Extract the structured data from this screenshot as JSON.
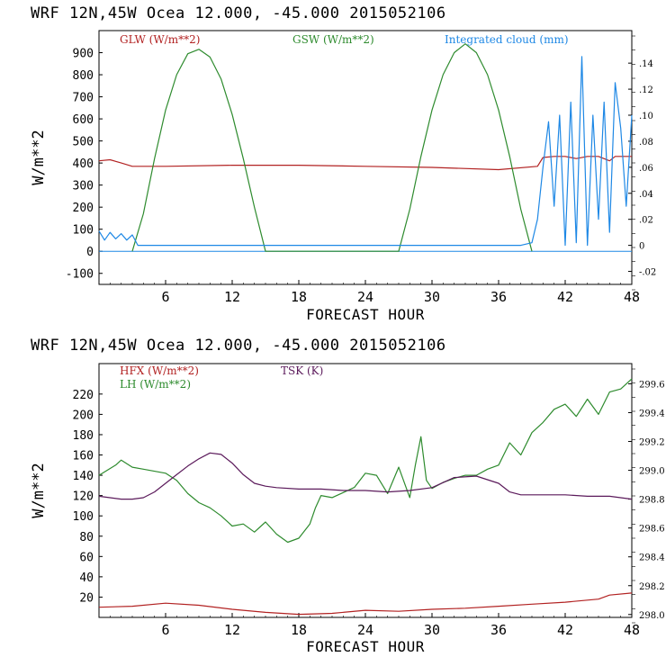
{
  "colors": {
    "axis": "#000000",
    "glw": "#b22222",
    "gsw": "#2e8b2e",
    "cloud": "#1e88e5",
    "hfx": "#b22222",
    "lh": "#2e8b2e",
    "tsk": "#5b1a5b"
  },
  "chart_data": [
    {
      "type": "line",
      "title": "WRF   12N,45W Ocea  12.000, -45.000  2015052106",
      "xlabel": "FORECAST HOUR",
      "ylabel": "W/m**2",
      "xlim": [
        0,
        48
      ],
      "xticks": [
        "6",
        "12",
        "18",
        "24",
        "30",
        "36",
        "42",
        "48"
      ],
      "ylim": [
        -150,
        1000
      ],
      "yticks": [
        "-100",
        "0",
        "100",
        "200",
        "300",
        "400",
        "500",
        "600",
        "700",
        "800",
        "900"
      ],
      "y2lim": [
        -0.03,
        0.165
      ],
      "y2ticks": [
        "-.02",
        "0",
        ".02",
        ".04",
        ".06",
        ".08",
        ".10",
        ".12",
        ".14"
      ],
      "y2label": "Integrated cloud (mm)",
      "series": [
        {
          "name": "GLW (W/m**2)",
          "axis": "left",
          "x": [
            0,
            1,
            2,
            3,
            6,
            12,
            18,
            24,
            30,
            36,
            39.5,
            40,
            41,
            42,
            43,
            44,
            45,
            46,
            46.5,
            47,
            48
          ],
          "y": [
            410,
            415,
            400,
            385,
            385,
            390,
            390,
            385,
            380,
            370,
            385,
            425,
            430,
            430,
            420,
            430,
            430,
            410,
            430,
            430,
            430
          ]
        },
        {
          "name": "GSW (W/m**2)",
          "axis": "left",
          "x": [
            3,
            4,
            5,
            6,
            7,
            8,
            9,
            10,
            11,
            12,
            13,
            14,
            15,
            27,
            28,
            29,
            30,
            31,
            32,
            33,
            34,
            35,
            36,
            37,
            38,
            39
          ],
          "y": [
            0,
            170,
            420,
            640,
            800,
            895,
            915,
            880,
            780,
            620,
            420,
            200,
            0,
            0,
            190,
            430,
            640,
            800,
            900,
            940,
            900,
            800,
            640,
            430,
            190,
            0
          ]
        },
        {
          "name": "Integrated cloud (mm)",
          "axis": "right",
          "x": [
            0,
            0.5,
            1,
            1.5,
            2,
            2.5,
            3,
            3.5,
            4,
            8,
            16,
            24,
            32,
            38,
            39,
            39.5,
            40,
            40.5,
            41,
            41.5,
            42,
            42.5,
            43,
            43.5,
            44,
            44.5,
            45,
            45.5,
            46,
            46.5,
            47,
            47.5,
            48
          ],
          "y": [
            0.011,
            0.004,
            0.01,
            0.005,
            0.009,
            0.004,
            0.008,
            0,
            0,
            0,
            0,
            0,
            0,
            0,
            0.002,
            0.02,
            0.06,
            0.095,
            0.03,
            0.1,
            0,
            0.11,
            0.002,
            0.145,
            0,
            0.1,
            0.02,
            0.11,
            0.01,
            0.125,
            0.09,
            0.03,
            0.1
          ]
        }
      ]
    },
    {
      "type": "line",
      "title": "WRF   12N,45W Ocea  12.000, -45.000  2015052106",
      "xlabel": "FORECAST HOUR",
      "ylabel": "W/m**2",
      "xlim": [
        0,
        48
      ],
      "xticks": [
        "6",
        "12",
        "18",
        "24",
        "30",
        "36",
        "42",
        "48"
      ],
      "ylim": [
        0,
        250
      ],
      "yticks": [
        "20",
        "40",
        "60",
        "80",
        "100",
        "120",
        "140",
        "160",
        "180",
        "200",
        "220"
      ],
      "y2lim": [
        297.98,
        299.74
      ],
      "y2ticks": [
        "298.0",
        "298.2",
        "298.4",
        "298.6",
        "298.8",
        "299.0",
        "299.2",
        "299.4",
        "299.6"
      ],
      "y2label": "TSK (K)",
      "series": [
        {
          "name": "HFX (W/m**2)",
          "axis": "left",
          "x": [
            0,
            3,
            6,
            9,
            12,
            15,
            18,
            21,
            24,
            27,
            30,
            33,
            36,
            39,
            42,
            45,
            46,
            48
          ],
          "y": [
            10,
            11,
            14,
            12,
            8,
            5,
            3,
            4,
            7,
            6,
            8,
            9,
            11,
            13,
            15,
            18,
            22,
            24
          ]
        },
        {
          "name": "LH  (W/m**2)",
          "axis": "left",
          "x": [
            0,
            1.5,
            2,
            3,
            4,
            6,
            7,
            8,
            9,
            10,
            11,
            12,
            13,
            14,
            15,
            16,
            17,
            18,
            19,
            19.5,
            20,
            21,
            22,
            23,
            24,
            25,
            26,
            27,
            28,
            28.5,
            29,
            29.5,
            30,
            31,
            32,
            33,
            34,
            35,
            36,
            37,
            38,
            39,
            40,
            41,
            42,
            43,
            44,
            45,
            46,
            47,
            48
          ],
          "y": [
            140,
            150,
            155,
            148,
            146,
            142,
            135,
            122,
            113,
            108,
            100,
            90,
            92,
            84,
            94,
            82,
            74,
            78,
            92,
            108,
            120,
            118,
            123,
            128,
            142,
            140,
            122,
            148,
            118,
            150,
            178,
            135,
            127,
            133,
            137,
            140,
            140,
            146,
            150,
            172,
            160,
            182,
            192,
            205,
            210,
            198,
            215,
            200,
            222,
            225,
            235
          ]
        },
        {
          "name": "TSK (K)",
          "axis": "right",
          "x": [
            0,
            1,
            2,
            3,
            4,
            5,
            6,
            7,
            8,
            9,
            10,
            11,
            12,
            13,
            14,
            15,
            16,
            18,
            20,
            22,
            24,
            26,
            28,
            30,
            32,
            34,
            36,
            37,
            38,
            40,
            42,
            44,
            46,
            48
          ],
          "y": [
            298.82,
            298.81,
            298.8,
            298.8,
            298.81,
            298.85,
            298.91,
            298.97,
            299.03,
            299.08,
            299.12,
            299.11,
            299.05,
            298.97,
            298.91,
            298.89,
            298.88,
            298.87,
            298.87,
            298.86,
            298.86,
            298.85,
            298.86,
            298.88,
            298.95,
            298.96,
            298.91,
            298.85,
            298.83,
            298.83,
            298.83,
            298.82,
            298.82,
            298.8
          ]
        }
      ]
    }
  ]
}
